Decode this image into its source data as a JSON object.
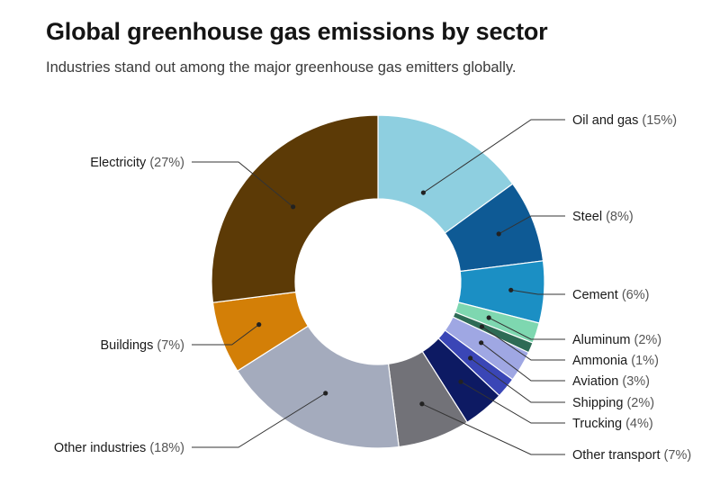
{
  "title": "Global greenhouse gas emissions by sector",
  "subtitle": "Industries stand out among the major greenhouse gas emitters globally.",
  "chart_data": {
    "type": "pie",
    "donut": true,
    "slices": [
      {
        "name": "Oil and gas",
        "value": 15,
        "label_pct": "(15%)",
        "color": "#8ecfe0"
      },
      {
        "name": "Steel",
        "value": 8,
        "label_pct": "(8%)",
        "color": "#0e5a95"
      },
      {
        "name": "Cement",
        "value": 6,
        "label_pct": "(6%)",
        "color": "#1b8fc4"
      },
      {
        "name": "Aluminum",
        "value": 2,
        "label_pct": "(2%)",
        "color": "#7ed7b0"
      },
      {
        "name": "Ammonia",
        "value": 1,
        "label_pct": "(1%)",
        "color": "#2e6b55"
      },
      {
        "name": "Aviation",
        "value": 3,
        "label_pct": "(3%)",
        "color": "#9fa7e3"
      },
      {
        "name": "Shipping",
        "value": 2,
        "label_pct": "(2%)",
        "color": "#3a46b6"
      },
      {
        "name": "Trucking",
        "value": 4,
        "label_pct": "(4%)",
        "color": "#0d1a63"
      },
      {
        "name": "Other transport",
        "value": 7,
        "label_pct": "(7%)",
        "color": "#727278"
      },
      {
        "name": "Other industries",
        "value": 18,
        "label_pct": "(18%)",
        "color": "#a4abbd"
      },
      {
        "name": "Buildings",
        "value": 7,
        "label_pct": "(7%)",
        "color": "#d37f07"
      },
      {
        "name": "Electricity",
        "value": 27,
        "label_pct": "(27%)",
        "color": "#5c3a06"
      }
    ]
  }
}
